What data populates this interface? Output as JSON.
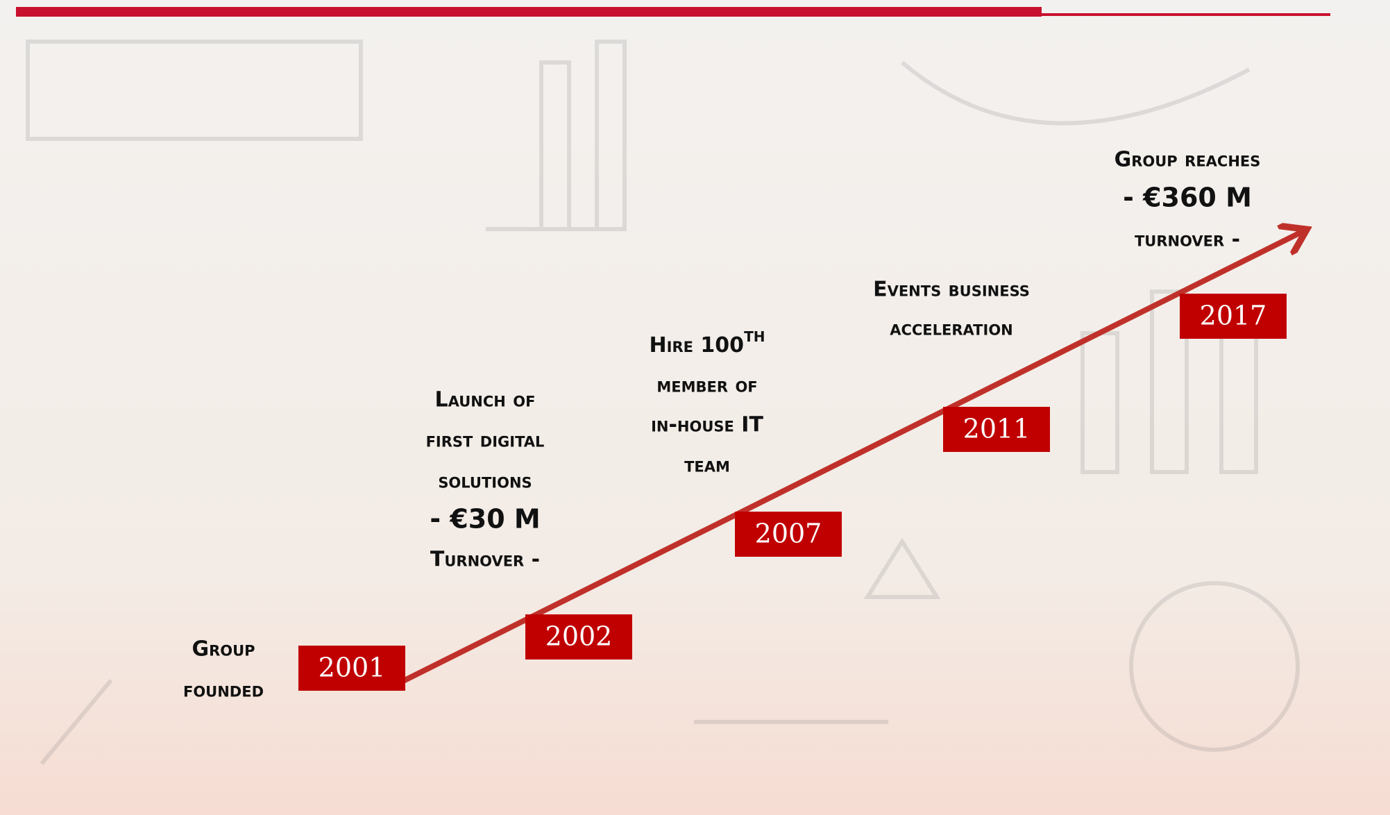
{
  "milestones": [
    {
      "year": "2001",
      "lines": [
        "Group",
        "founded"
      ]
    },
    {
      "year": "2002",
      "lines": [
        "Launch of",
        "first digital",
        "solutions",
        "- €30 M",
        "Turnover -"
      ]
    },
    {
      "year": "2007",
      "lines": [
        "Hire 100",
        "member of",
        "in-house IT",
        "team"
      ],
      "superscript": "th"
    },
    {
      "year": "2011",
      "lines": [
        "Events business",
        "acceleration"
      ]
    },
    {
      "year": "2017",
      "lines": [
        "Group reaches",
        "- €360 M",
        "turnover -"
      ]
    }
  ]
}
